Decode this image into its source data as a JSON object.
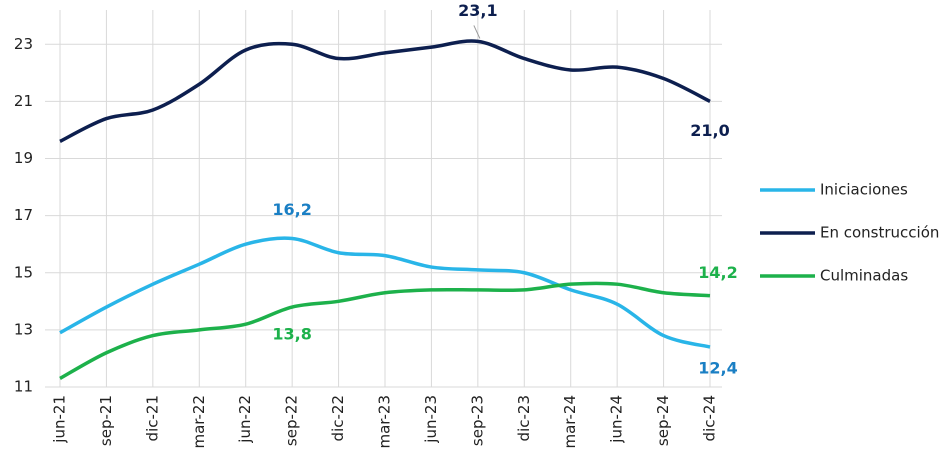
{
  "chart_data": {
    "type": "line",
    "categories": [
      "jun-21",
      "sep-21",
      "dic-21",
      "mar-22",
      "jun-22",
      "sep-22",
      "dic-22",
      "mar-23",
      "jun-23",
      "sep-23",
      "dic-23",
      "mar-24",
      "jun-24",
      "sep-24",
      "dic-24"
    ],
    "series": [
      {
        "name": "Iniciaciones",
        "color": "#29b5e8",
        "label_color": "#1a7fc4",
        "values": [
          12.9,
          13.8,
          14.6,
          15.3,
          16.0,
          16.2,
          15.7,
          15.6,
          15.2,
          15.1,
          15.0,
          14.4,
          13.9,
          12.8,
          12.4
        ],
        "value_labels": [
          null,
          null,
          null,
          null,
          null,
          "16,2",
          null,
          null,
          null,
          null,
          null,
          null,
          null,
          null,
          "12,4"
        ]
      },
      {
        "name": "En construcción",
        "color": "#0d1f4f",
        "label_color": "#0d1f4f",
        "values": [
          19.6,
          20.4,
          20.7,
          21.6,
          22.8,
          23.0,
          22.5,
          22.7,
          22.9,
          23.1,
          22.5,
          22.1,
          22.2,
          21.8,
          21.0
        ],
        "value_labels": [
          null,
          null,
          null,
          null,
          null,
          null,
          null,
          null,
          null,
          "23,1",
          null,
          null,
          null,
          null,
          "21,0"
        ]
      },
      {
        "name": "Culminadas",
        "color": "#1db14b",
        "label_color": "#1db14b",
        "values": [
          11.3,
          12.2,
          12.8,
          13.0,
          13.2,
          13.8,
          14.0,
          14.3,
          14.4,
          14.4,
          14.4,
          14.6,
          14.6,
          14.3,
          14.2
        ],
        "value_labels": [
          null,
          null,
          null,
          null,
          null,
          "13,8",
          null,
          null,
          null,
          null,
          null,
          null,
          null,
          null,
          "14,2"
        ]
      }
    ],
    "ylim": [
      11,
      24.2
    ],
    "yticks": [
      11,
      13,
      15,
      17,
      19,
      21,
      23
    ],
    "grid": true
  }
}
